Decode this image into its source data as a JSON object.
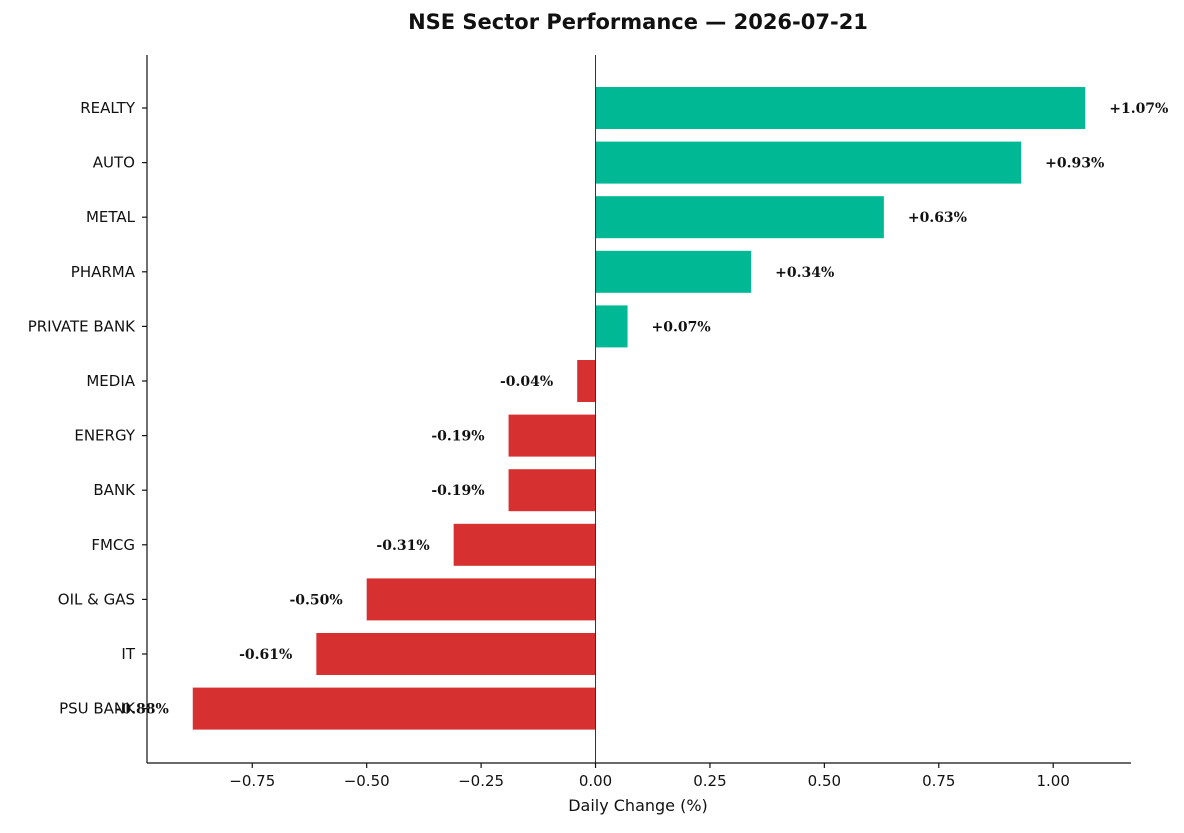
{
  "chart_data": {
    "type": "bar",
    "orientation": "horizontal",
    "title": "NSE Sector Performance — 2026-07-21",
    "xlabel": "Daily Change (%)",
    "ylabel": "",
    "categories": [
      "REALTY",
      "AUTO",
      "METAL",
      "PHARMA",
      "PRIVATE BANK",
      "MEDIA",
      "ENERGY",
      "BANK",
      "FMCG",
      "OIL & GAS",
      "IT",
      "PSU BANK"
    ],
    "values": [
      1.07,
      0.93,
      0.63,
      0.34,
      0.07,
      -0.04,
      -0.19,
      -0.19,
      -0.31,
      -0.5,
      -0.61,
      -0.88
    ],
    "value_labels": [
      "+1.07%",
      "+0.93%",
      "+0.63%",
      "+0.34%",
      "+0.07%",
      "-0.04%",
      "-0.19%",
      "-0.19%",
      "-0.31%",
      "-0.50%",
      "-0.61%",
      "-0.88%"
    ],
    "x_ticks": [
      -0.75,
      -0.5,
      -0.25,
      0.0,
      0.25,
      0.5,
      0.75,
      1.0
    ],
    "x_tick_labels": [
      "−0.75",
      "−0.50",
      "−0.25",
      "0.00",
      "0.25",
      "0.50",
      "0.75",
      "1.00"
    ],
    "xlim": [
      -0.98,
      1.17
    ],
    "grid": false,
    "legend": "none",
    "colors": {
      "positive": "#00b894",
      "negative": "#d63031",
      "zero_line": "#333333"
    }
  }
}
